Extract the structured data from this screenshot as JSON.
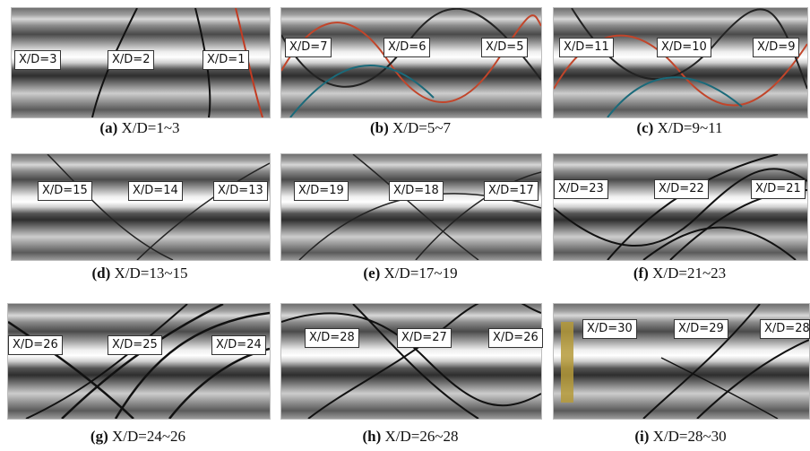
{
  "panels": [
    {
      "letter": "(a)",
      "range": "X/D=1~3",
      "labels": [
        "X/D=3",
        "X/D=2",
        "X/D=1"
      ]
    },
    {
      "letter": "(b)",
      "range": "X/D=5~7",
      "labels": [
        "X/D=7",
        "X/D=6",
        "X/D=5"
      ]
    },
    {
      "letter": "(c)",
      "range": "X/D=9~11",
      "labels": [
        "X/D=11",
        "X/D=10",
        "X/D=9"
      ]
    },
    {
      "letter": "(d)",
      "range": "X/D=13~15",
      "labels": [
        "X/D=15",
        "X/D=14",
        "X/D=13"
      ]
    },
    {
      "letter": "(e)",
      "range": "X/D=17~19",
      "labels": [
        "X/D=19",
        "X/D=18",
        "X/D=17"
      ]
    },
    {
      "letter": "(f)",
      "range": "X/D=21~23",
      "labels": [
        "X/D=23",
        "X/D=22",
        "X/D=21"
      ]
    },
    {
      "letter": "(g)",
      "range": "X/D=24~26",
      "labels": [
        "X/D=26",
        "X/D=25",
        "X/D=24"
      ]
    },
    {
      "letter": "(h)",
      "range": "X/D=26~28",
      "labels": [
        "X/D=28",
        "X/D=27",
        "X/D=26"
      ]
    },
    {
      "letter": "(i)",
      "range": "X/D=28~30",
      "labels": [
        "X/D=30",
        "X/D=29",
        "X/D=28"
      ]
    }
  ]
}
